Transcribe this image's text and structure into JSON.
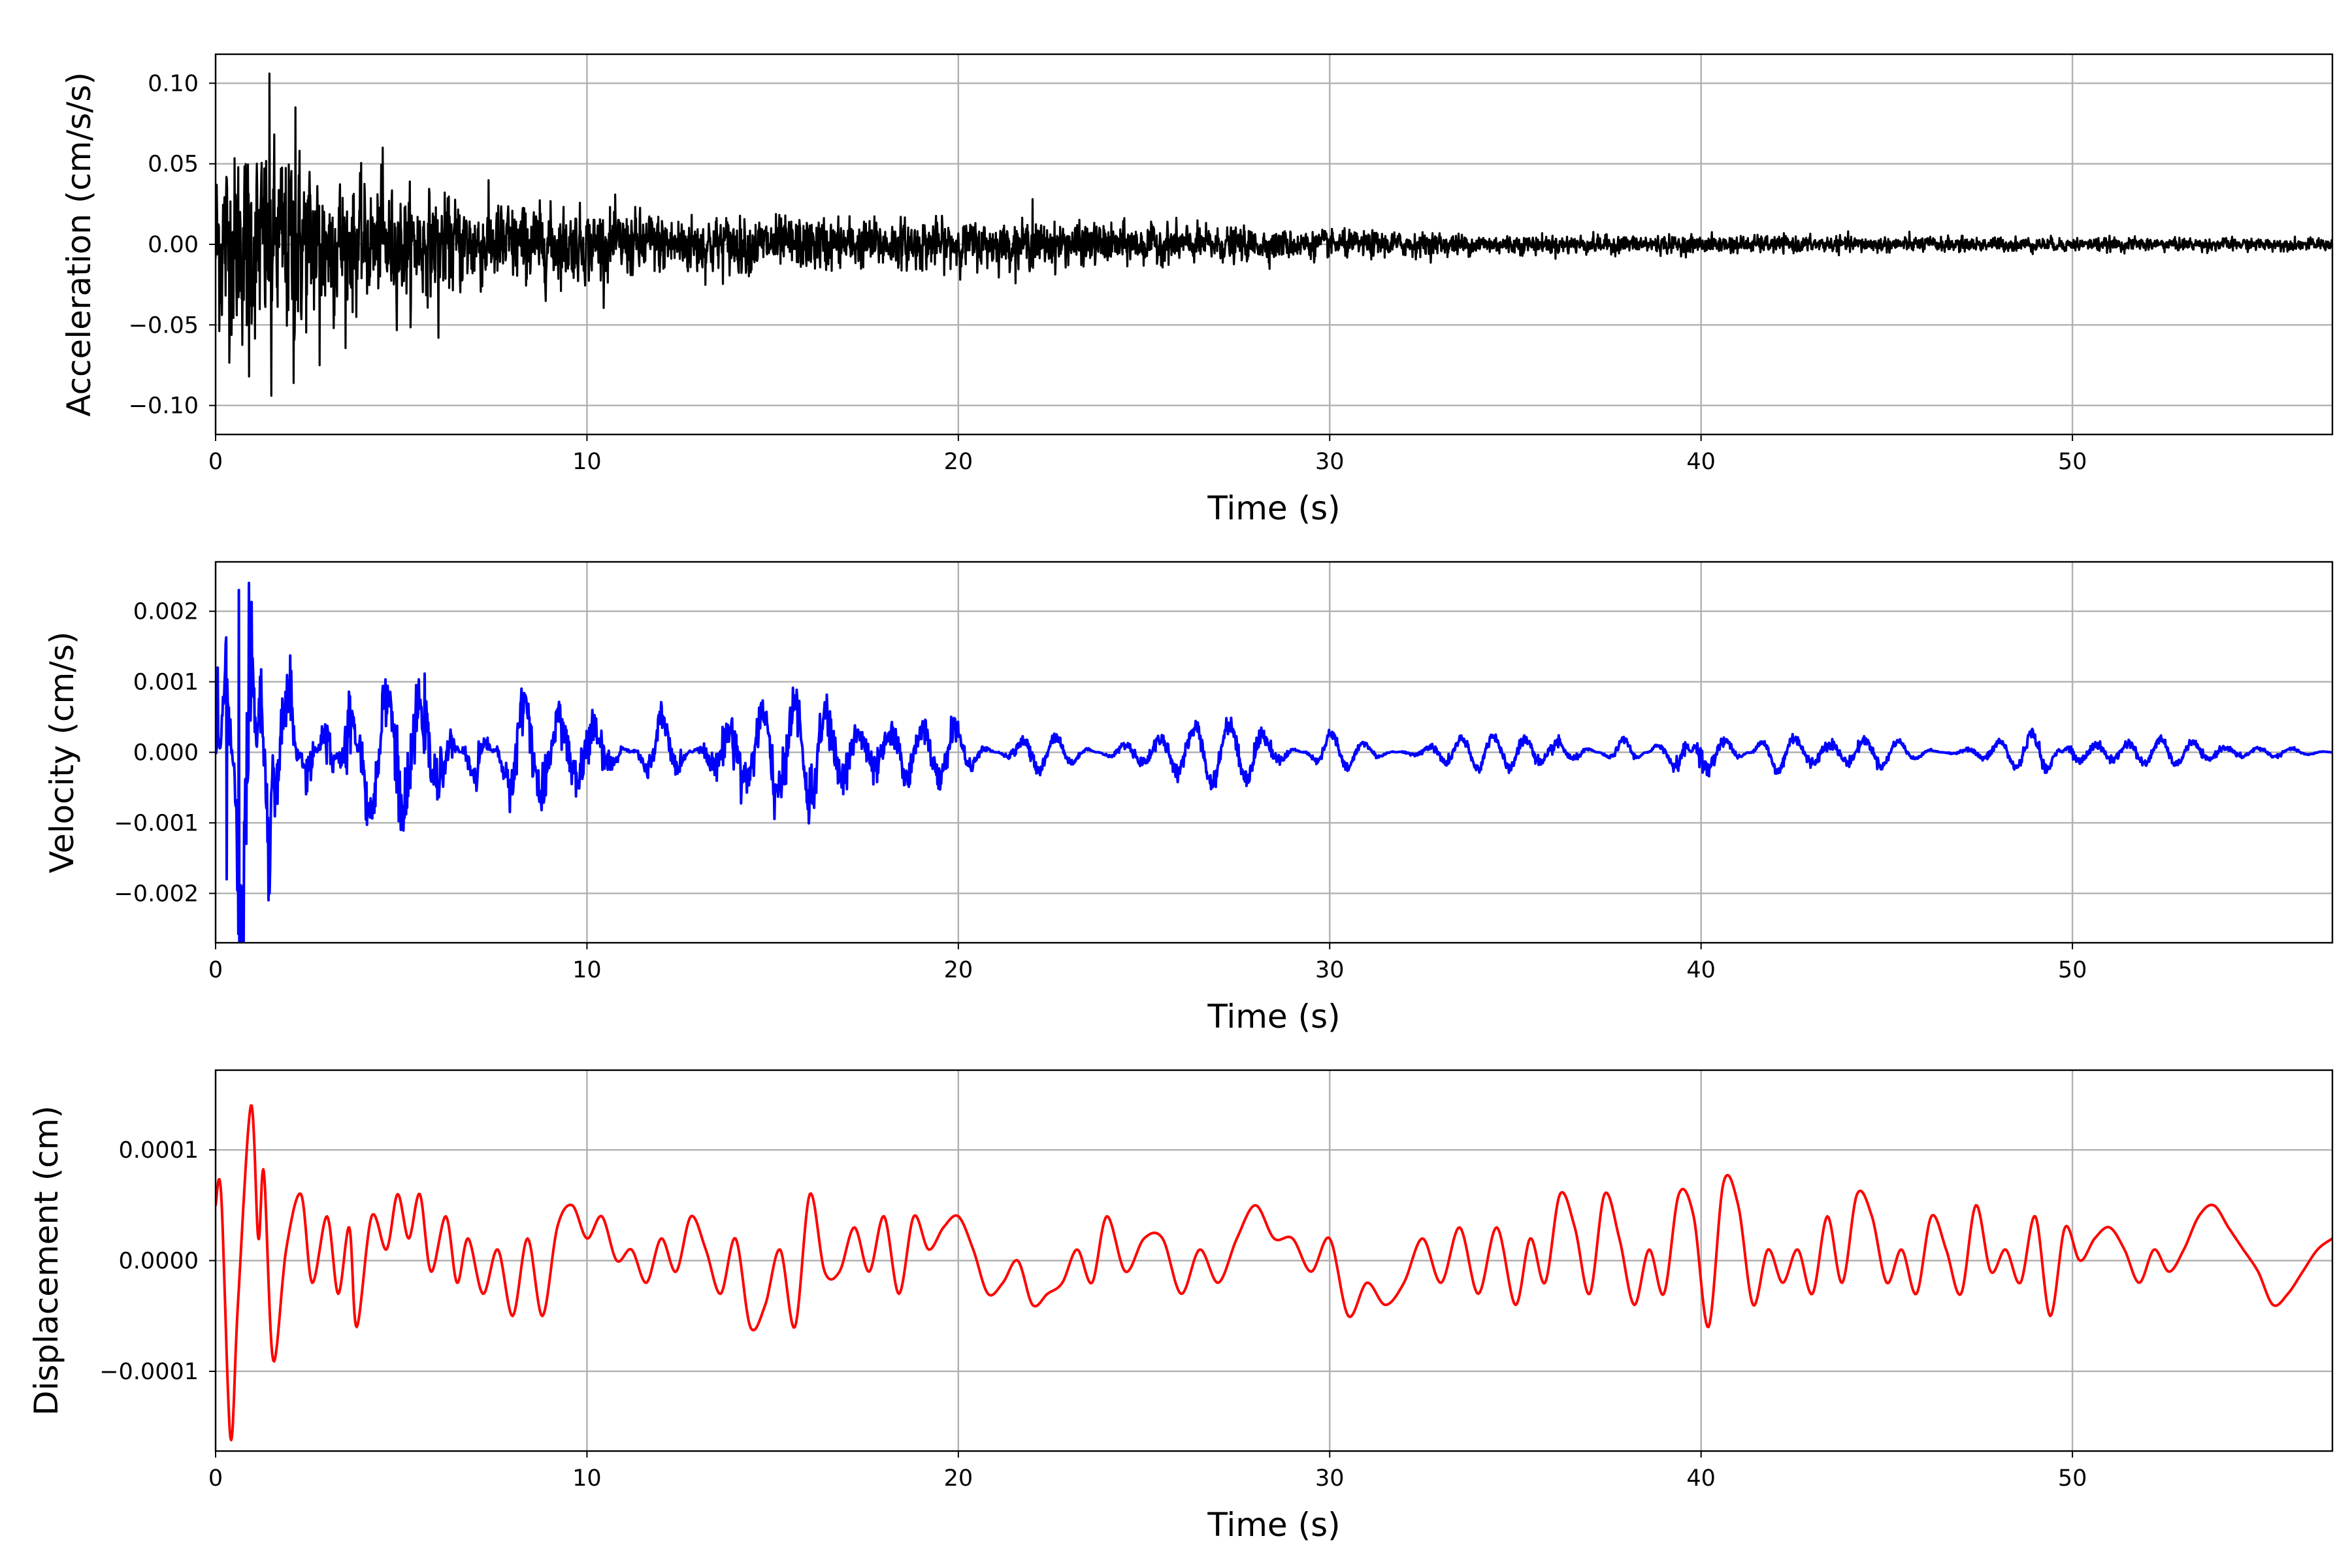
{
  "chart_data": [
    {
      "type": "line",
      "title": "",
      "xlabel": "Time (s)",
      "ylabel": "Acceleration (cm/s/s)",
      "xlim": [
        0,
        57
      ],
      "ylim": [
        -0.118,
        0.118
      ],
      "xticks": [
        "0",
        "10",
        "20",
        "30",
        "40",
        "50"
      ],
      "yticks": [
        "−0.10",
        "−0.05",
        "0.00",
        "0.05",
        "0.10"
      ],
      "ytick_values": [
        -0.1,
        -0.05,
        0.0,
        0.05,
        0.1
      ],
      "grid": true,
      "color": "#000000",
      "style": "noise",
      "envelope": {
        "t": [
          0,
          2,
          4,
          6,
          10,
          15,
          20,
          25,
          30,
          35,
          40,
          45,
          50,
          57
        ],
        "amplitude": [
          0.05,
          0.05,
          0.03,
          0.025,
          0.018,
          0.014,
          0.012,
          0.01,
          0.007,
          0.005,
          0.0045,
          0.004,
          0.0035,
          0.003
        ]
      },
      "peaks": [
        {
          "t": 1.45,
          "v": 0.106
        },
        {
          "t": 2.15,
          "v": 0.085
        },
        {
          "t": 1.5,
          "v": -0.094
        },
        {
          "t": 2.1,
          "v": -0.086
        },
        {
          "t": 0.9,
          "v": -0.082
        },
        {
          "t": 2.8,
          "v": -0.075
        },
        {
          "t": 4.5,
          "v": 0.06
        },
        {
          "t": 6.0,
          "v": -0.058
        },
        {
          "t": 22.0,
          "v": 0.028
        }
      ]
    },
    {
      "type": "line",
      "title": "",
      "xlabel": "Time (s)",
      "ylabel": "Velocity (cm/s)",
      "xlim": [
        0,
        57
      ],
      "ylim": [
        -0.0027,
        0.0027
      ],
      "xticks": [
        "0",
        "10",
        "20",
        "30",
        "40",
        "50"
      ],
      "yticks": [
        "−0.002",
        "−0.001",
        "0.000",
        "0.001",
        "0.002"
      ],
      "ytick_values": [
        -0.002,
        -0.001,
        0.0,
        0.001,
        0.002
      ],
      "grid": true,
      "color": "#0000ff",
      "style": "oscillation",
      "points": {
        "t": [
          0,
          0.3,
          0.6,
          0.9,
          1.2,
          1.45,
          1.6,
          2.0,
          2.5,
          3.0,
          3.6,
          4.0,
          5.0,
          6.0,
          7.0,
          8.0,
          10.0,
          12.0,
          14.0,
          16.0,
          18.0,
          20.0,
          22.0,
          25.0,
          28.0,
          30.0,
          33.0,
          36.0,
          38.0,
          39.5,
          40.0,
          42.0,
          45.0,
          48.0,
          49.3,
          50.0,
          52.0,
          55.0,
          57.0
        ],
        "v": [
          0.0012,
          -0.0018,
          0.0023,
          0.0024,
          -0.0011,
          -0.002,
          0.0013,
          0.0012,
          -0.0009,
          0.001,
          -0.0012,
          0.0009,
          0.0009,
          0.0008,
          -0.0006,
          0.0007,
          0.0007,
          -0.0005,
          0.0007,
          0.0007,
          0.0004,
          0.0004,
          -0.0004,
          0.0003,
          0.0005,
          -0.0003,
          0.0002,
          0.0003,
          -0.0002,
          0.0004,
          -0.0005,
          0.0003,
          0.0002,
          -0.0002,
          -0.0003,
          0.0002,
          0.0002,
          0.0001,
          0.0
        ],
        "period_s": 0.9
      }
    },
    {
      "type": "line",
      "title": "",
      "xlabel": "Time (s)",
      "ylabel": "Displacement (cm)",
      "xlim": [
        0,
        57
      ],
      "ylim": [
        -0.000172,
        0.000172
      ],
      "xticks": [
        "0",
        "10",
        "20",
        "30",
        "40",
        "50"
      ],
      "yticks": [
        "−0.0001",
        "0.0000",
        "0.0001"
      ],
      "ytick_values": [
        -0.0001,
        0.0,
        0.0001
      ],
      "grid": true,
      "color": "#ff0000",
      "style": "smooth",
      "points": {
        "t": [
          0,
          0.15,
          0.4,
          0.6,
          0.95,
          1.15,
          1.3,
          1.55,
          1.9,
          2.3,
          2.6,
          3.0,
          3.3,
          3.6,
          3.8,
          4.2,
          4.6,
          4.9,
          5.2,
          5.5,
          5.8,
          6.2,
          6.5,
          6.8,
          7.2,
          7.6,
          8.0,
          8.4,
          8.8,
          9.2,
          9.6,
          10.0,
          10.4,
          10.8,
          11.2,
          11.6,
          12.0,
          12.4,
          12.8,
          13.2,
          13.6,
          14.0,
          14.4,
          14.8,
          15.2,
          15.6,
          16.0,
          16.4,
          16.8,
          17.2,
          17.6,
          18.0,
          18.4,
          18.8,
          19.2,
          19.6,
          20.0,
          20.4,
          20.8,
          21.2,
          21.6,
          22.0,
          22.4,
          22.8,
          23.2,
          23.6,
          24.0,
          24.5,
          25.0,
          25.5,
          26.0,
          26.5,
          27.0,
          27.5,
          28.0,
          28.5,
          29.0,
          29.5,
          30.0,
          30.5,
          31.0,
          31.5,
          32.0,
          32.5,
          33.0,
          33.5,
          34.0,
          34.5,
          35.0,
          35.4,
          35.8,
          36.2,
          36.6,
          37.0,
          37.4,
          37.8,
          38.2,
          38.6,
          39.0,
          39.4,
          39.8,
          40.2,
          40.6,
          41.0,
          41.4,
          41.8,
          42.2,
          42.6,
          43.0,
          43.4,
          43.8,
          44.2,
          44.6,
          45.0,
          45.4,
          45.8,
          46.2,
          46.6,
          47.0,
          47.4,
          47.8,
          48.2,
          48.6,
          49.0,
          49.4,
          49.8,
          50.2,
          50.6,
          51.0,
          51.4,
          51.8,
          52.2,
          52.6,
          53.0,
          53.4,
          53.8,
          54.2,
          54.6,
          55.0,
          55.4,
          55.8,
          56.2,
          56.6,
          57.0
        ],
        "v": [
          5e-05,
          6e-05,
          -0.00016,
          -4e-05,
          0.00014,
          2e-05,
          8e-05,
          -9e-05,
          1e-05,
          6e-05,
          -2e-05,
          4e-05,
          -3e-05,
          3e-05,
          -6e-05,
          4e-05,
          1e-05,
          6e-05,
          2e-05,
          6e-05,
          -1e-05,
          4e-05,
          -2e-05,
          2e-05,
          -3e-05,
          1e-05,
          -5e-05,
          2e-05,
          -5e-05,
          3e-05,
          5e-05,
          2e-05,
          4e-05,
          0.0,
          1e-05,
          -2e-05,
          2e-05,
          -1e-05,
          4e-05,
          1e-05,
          -3e-05,
          2e-05,
          -6e-05,
          -4e-05,
          1e-05,
          -6e-05,
          6e-05,
          -1e-05,
          -1e-05,
          3e-05,
          -1e-05,
          4e-05,
          -3e-05,
          4e-05,
          1e-05,
          3e-05,
          4e-05,
          1e-05,
          -3e-05,
          -2e-05,
          0.0,
          -4e-05,
          -3e-05,
          -2e-05,
          1e-05,
          -2e-05,
          4e-05,
          -1e-05,
          2e-05,
          2e-05,
          -3e-05,
          1e-05,
          -2e-05,
          2e-05,
          5e-05,
          2e-05,
          2e-05,
          -1e-05,
          2e-05,
          -5e-05,
          -2e-05,
          -4e-05,
          -2e-05,
          2e-05,
          -2e-05,
          3e-05,
          -3e-05,
          3e-05,
          -4e-05,
          2e-05,
          -2e-05,
          6e-05,
          3e-05,
          -3e-05,
          6e-05,
          2e-05,
          -4e-05,
          1e-05,
          -3e-05,
          6e-05,
          4e-05,
          -6e-05,
          7e-05,
          5e-05,
          -4e-05,
          1e-05,
          -2e-05,
          1e-05,
          -3e-05,
          4e-05,
          -2e-05,
          6e-05,
          4e-05,
          -2e-05,
          1e-05,
          -3e-05,
          4e-05,
          1e-05,
          -3e-05,
          5e-05,
          -1e-05,
          1e-05,
          -2e-05,
          4e-05,
          -5e-05,
          3e-05,
          0.0,
          2e-05,
          3e-05,
          1e-05,
          -2e-05,
          1e-05,
          -1e-05,
          1e-05,
          4e-05,
          5e-05,
          3e-05,
          1e-05,
          -1e-05,
          -4e-05,
          -3e-05,
          -1e-05,
          1e-05,
          2e-05
        ]
      }
    }
  ]
}
